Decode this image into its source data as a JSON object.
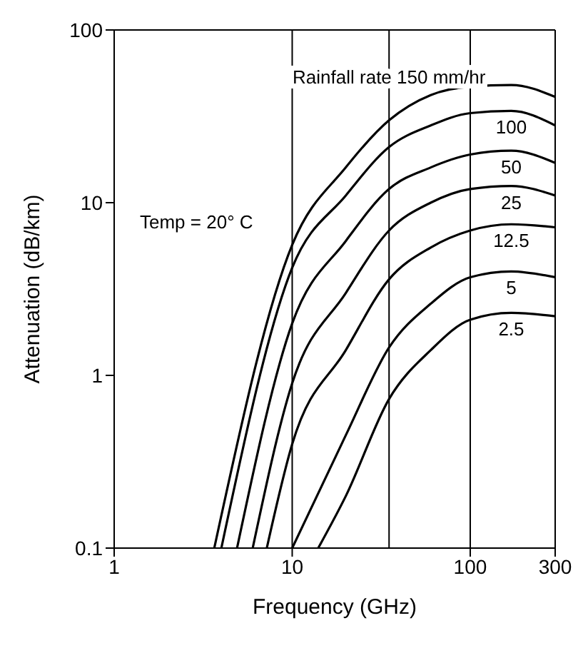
{
  "chart_data": {
    "type": "line",
    "xlabel": "Frequency (GHz)",
    "ylabel": "Attenuation (dB/km)",
    "log": "xy",
    "xlim": [
      1,
      300
    ],
    "xticks": [
      1,
      10,
      100,
      300
    ],
    "ylim": [
      0.1,
      100
    ],
    "yticks": [
      0.1,
      1,
      10,
      100
    ],
    "marker": "none",
    "line_style": "solid",
    "series": [
      {
        "name": "Rainfall rate 150 mm/hr",
        "color": "#000000",
        "x": [
          3.65,
          10,
          20,
          35,
          60,
          100,
          170,
          300
        ],
        "values": [
          0.1,
          5.7,
          16,
          30,
          42,
          47,
          48,
          41
        ]
      },
      {
        "name": "100",
        "color": "#000000",
        "x": [
          4,
          10,
          20,
          35,
          60,
          100,
          170,
          300
        ],
        "values": [
          0.1,
          4.2,
          11,
          21,
          28,
          33,
          34,
          28
        ]
      },
      {
        "name": "50",
        "color": "#000000",
        "x": [
          4.9,
          10,
          20,
          35,
          60,
          100,
          170,
          300
        ],
        "values": [
          0.1,
          2,
          6,
          12,
          16,
          19,
          20,
          17
        ]
      },
      {
        "name": "25",
        "color": "#000000",
        "x": [
          6,
          10,
          20,
          35,
          60,
          100,
          170,
          300
        ],
        "values": [
          0.1,
          0.9,
          3,
          6.9,
          10,
          12,
          12.5,
          11
        ]
      },
      {
        "name": "12.5",
        "color": "#000000",
        "x": [
          7.2,
          10,
          20,
          35,
          60,
          100,
          170,
          300
        ],
        "values": [
          0.1,
          0.4,
          1.4,
          3.6,
          5.5,
          6.9,
          7.5,
          7.2
        ]
      },
      {
        "name": "5",
        "color": "#000000",
        "x": [
          10,
          20,
          35,
          60,
          100,
          170,
          300
        ],
        "values": [
          0.1,
          0.45,
          1.45,
          2.6,
          3.7,
          4,
          3.7
        ]
      },
      {
        "name": "2.5",
        "color": "#000000",
        "x": [
          14,
          20,
          35,
          60,
          100,
          170,
          300
        ],
        "values": [
          0.1,
          0.2,
          0.73,
          1.4,
          2.1,
          2.3,
          2.2
        ]
      }
    ],
    "ref_lines": [
      {
        "axis": "x",
        "value": 10,
        "color": "#000000"
      },
      {
        "axis": "x",
        "value": 35,
        "color": "#000000"
      },
      {
        "axis": "x",
        "value": 100,
        "color": "#000000"
      }
    ],
    "annotations": [
      "Temp = 20° C"
    ]
  }
}
